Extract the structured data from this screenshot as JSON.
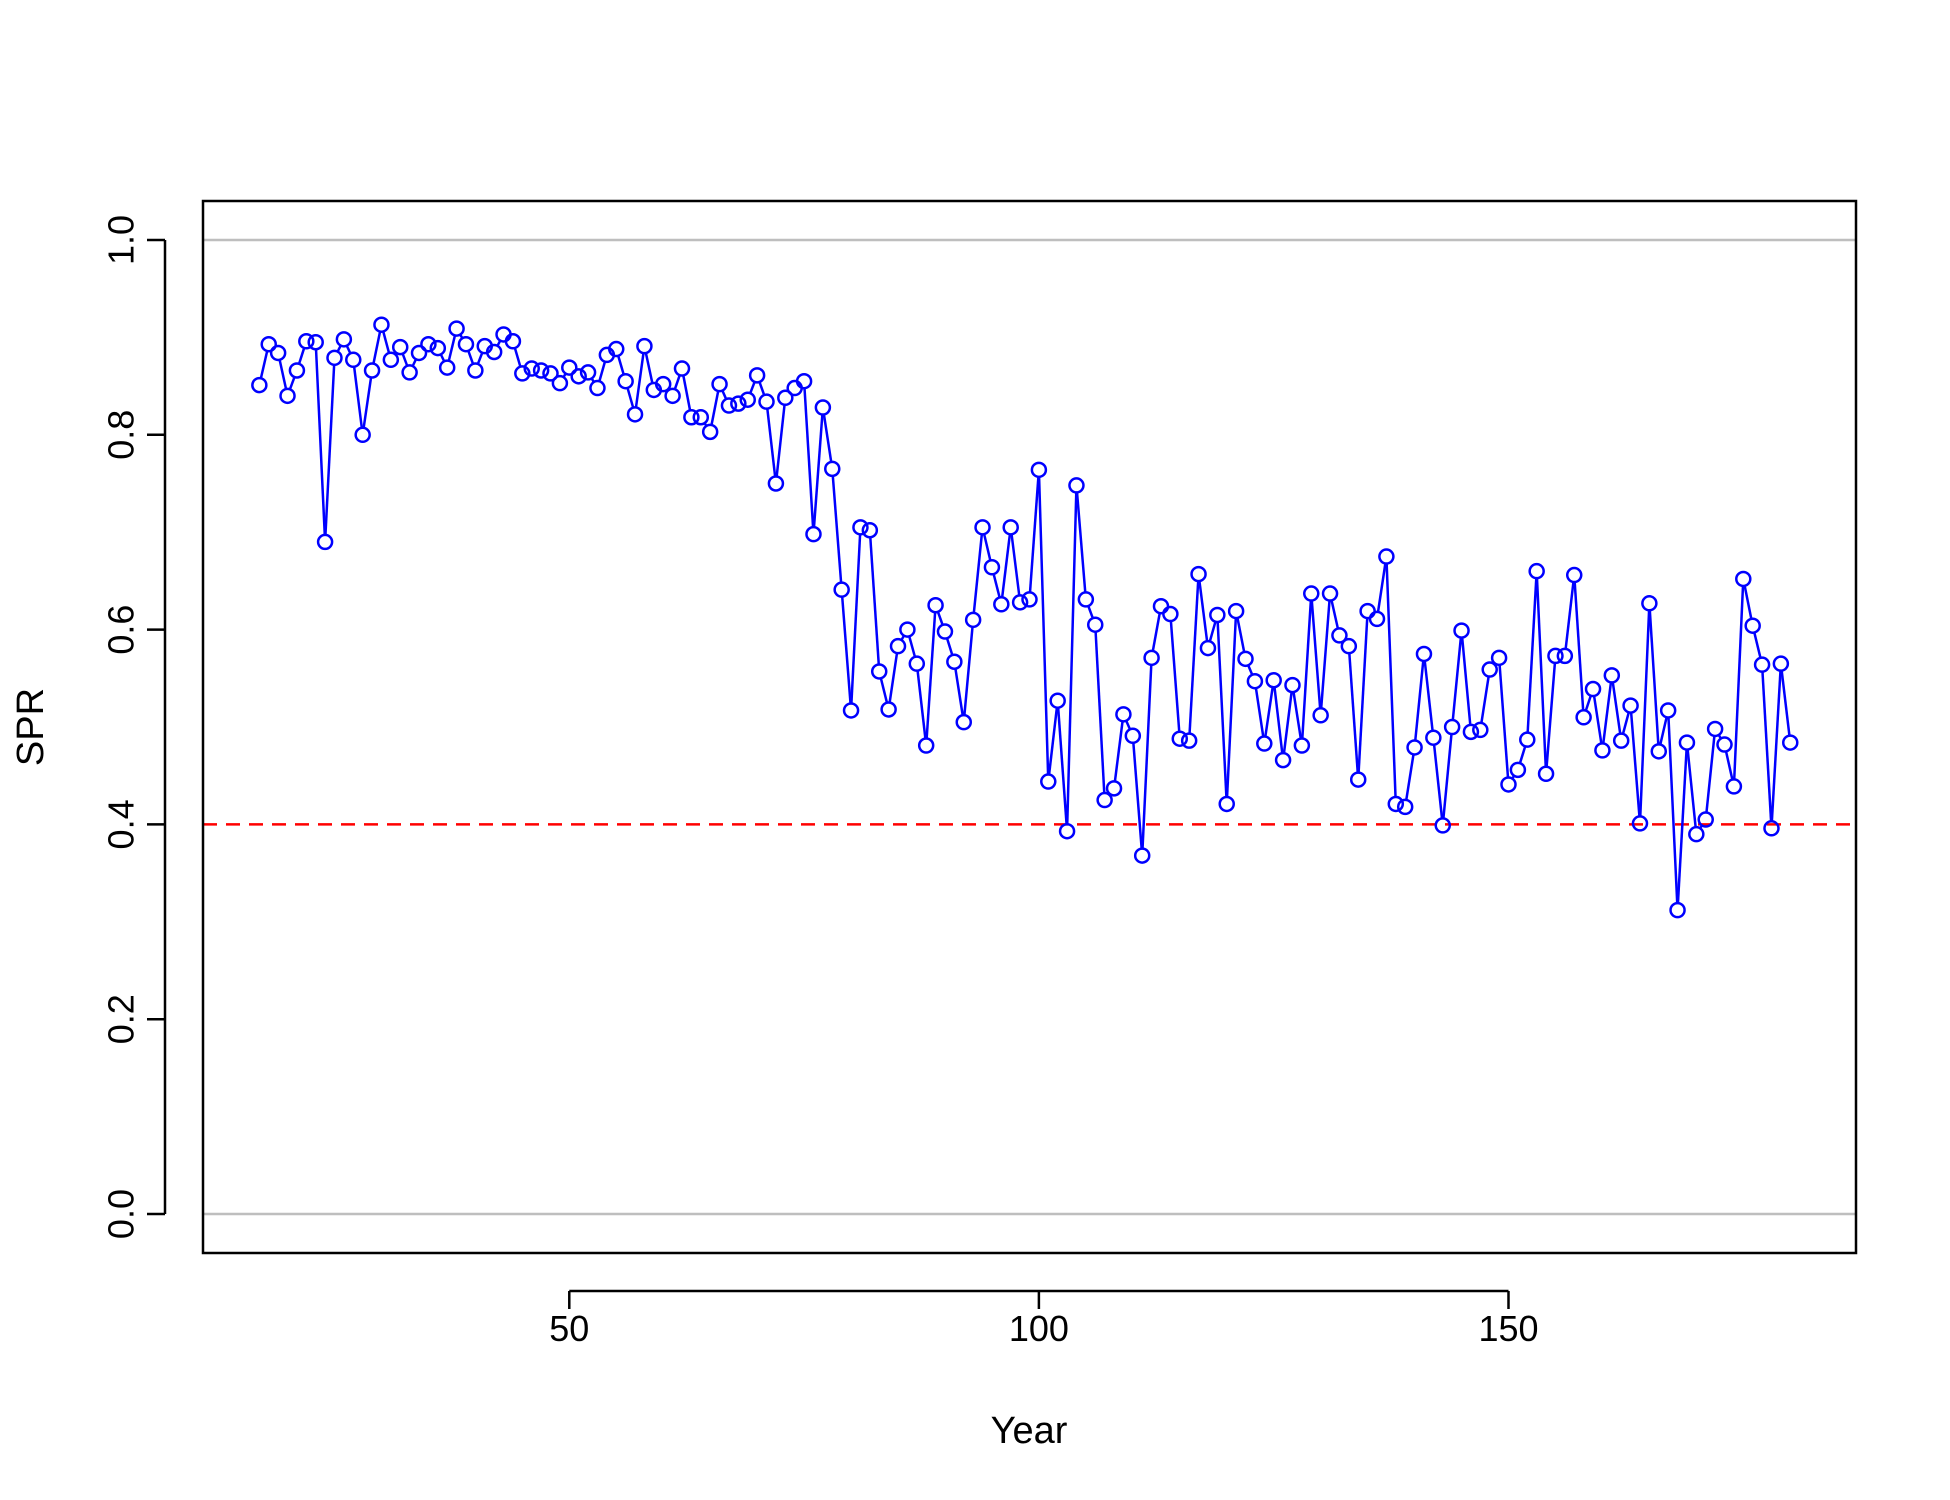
{
  "chart_data": {
    "type": "line",
    "title": "",
    "xlabel": "Year",
    "ylabel": "SPR",
    "xlim": [
      11,
      187
    ],
    "ylim": [
      -0.04,
      1.04
    ],
    "x_ticks": [
      {
        "value": 50,
        "label": "50"
      },
      {
        "value": 100,
        "label": "100"
      },
      {
        "value": 150,
        "label": "150"
      }
    ],
    "y_ticks": [
      {
        "value": 0.0,
        "label": "0.0"
      },
      {
        "value": 0.2,
        "label": "0.2"
      },
      {
        "value": 0.4,
        "label": "0.4"
      },
      {
        "value": 0.6,
        "label": "0.6"
      },
      {
        "value": 0.8,
        "label": "0.8"
      },
      {
        "value": 1.0,
        "label": "1.0"
      }
    ],
    "grid": false,
    "reference_lines": [
      {
        "y": 1.0,
        "color": "#bebebe",
        "style": "solid"
      },
      {
        "y": 0.0,
        "color": "#bebebe",
        "style": "solid"
      },
      {
        "y": 0.4,
        "color": "#ff0000",
        "style": "dashed"
      }
    ],
    "series": [
      {
        "color": "#0000ff",
        "marker": "open-circle",
        "x_start": 17,
        "x_step": 1,
        "values": [
          0.851,
          0.893,
          0.884,
          0.84,
          0.866,
          0.896,
          0.895,
          0.69,
          0.879,
          0.898,
          0.877,
          0.8,
          0.866,
          0.913,
          0.877,
          0.89,
          0.864,
          0.884,
          0.893,
          0.889,
          0.869,
          0.909,
          0.893,
          0.866,
          0.891,
          0.885,
          0.903,
          0.896,
          0.863,
          0.868,
          0.866,
          0.863,
          0.853,
          0.869,
          0.86,
          0.864,
          0.848,
          0.882,
          0.888,
          0.855,
          0.821,
          0.891,
          0.846,
          0.852,
          0.84,
          0.868,
          0.818,
          0.818,
          0.803,
          0.852,
          0.83,
          0.832,
          0.836,
          0.861,
          0.834,
          0.75,
          0.838,
          0.848,
          0.855,
          0.698,
          0.828,
          0.765,
          0.641,
          0.517,
          0.705,
          0.702,
          0.557,
          0.518,
          0.583,
          0.6,
          0.565,
          0.481,
          0.625,
          0.598,
          0.567,
          0.505,
          0.61,
          0.705,
          0.664,
          0.626,
          0.705,
          0.628,
          0.631,
          0.764,
          0.444,
          0.527,
          0.393,
          0.748,
          0.631,
          0.605,
          0.425,
          0.437,
          0.513,
          0.491,
          0.368,
          0.571,
          0.624,
          0.616,
          0.488,
          0.486,
          0.657,
          0.581,
          0.615,
          0.421,
          0.619,
          0.57,
          0.547,
          0.483,
          0.548,
          0.466,
          0.543,
          0.481,
          0.637,
          0.512,
          0.637,
          0.594,
          0.583,
          0.446,
          0.619,
          0.611,
          0.675,
          0.421,
          0.418,
          0.479,
          0.575,
          0.489,
          0.399,
          0.5,
          0.599,
          0.495,
          0.497,
          0.559,
          0.571,
          0.441,
          0.456,
          0.487,
          0.66,
          0.452,
          0.573,
          0.573,
          0.656,
          0.51,
          0.539,
          0.476,
          0.553,
          0.486,
          0.522,
          0.401,
          0.627,
          0.475,
          0.517,
          0.312,
          0.484,
          0.39,
          0.405,
          0.498,
          0.482,
          0.439,
          0.652,
          0.604,
          0.564,
          0.396,
          0.565,
          0.484
        ]
      }
    ]
  }
}
